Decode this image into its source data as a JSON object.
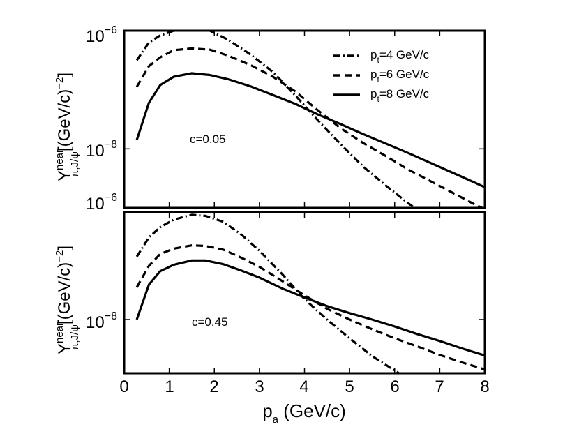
{
  "chart_data": [
    {
      "panel": "top",
      "type": "line",
      "y_scale": "log",
      "annotation": "c=0.05",
      "ylabel": {
        "main": "Y",
        "sup": "near",
        "sub": "π,J/ψ",
        "unit_pre": "[(GeV/c)",
        "unit_exp": "−2",
        "unit_post": "]"
      },
      "xlim": [
        0,
        8
      ],
      "ylim_log10": [
        -9,
        -6
      ],
      "yticks": [
        {
          "log10": -6,
          "base": "10",
          "exp": "−6"
        },
        {
          "log10": -8,
          "base": "10",
          "exp": "−8"
        }
      ],
      "series": [
        {
          "name": "p_t=4 GeV/c",
          "style": "dashdot",
          "x": [
            0.28,
            0.55,
            0.8,
            1.1,
            1.5,
            1.9,
            2.3,
            2.8,
            3.3,
            3.8,
            4.3,
            4.8,
            5.3,
            5.8,
            6.3,
            6.8,
            7.3,
            7.8,
            8.0
          ],
          "log10_y": [
            -6.5,
            -6.2,
            -6.08,
            -6.0,
            -5.95,
            -6.0,
            -6.15,
            -6.4,
            -6.7,
            -7.1,
            -7.52,
            -7.92,
            -8.3,
            -8.62,
            -8.92,
            -9.2,
            -9.5,
            -9.78,
            -9.9
          ]
        },
        {
          "name": "p_t=6 GeV/c",
          "style": "dashed",
          "x": [
            0.28,
            0.55,
            0.8,
            1.1,
            1.5,
            1.9,
            2.3,
            2.8,
            3.3,
            3.8,
            4.3,
            4.8,
            5.3,
            5.8,
            6.3,
            6.8,
            7.3,
            7.8,
            8.0
          ],
          "log10_y": [
            -6.95,
            -6.6,
            -6.45,
            -6.33,
            -6.3,
            -6.32,
            -6.42,
            -6.58,
            -6.78,
            -7.03,
            -7.35,
            -7.65,
            -7.9,
            -8.12,
            -8.35,
            -8.55,
            -8.75,
            -8.95,
            -9.02
          ]
        },
        {
          "name": "p_t=8 GeV/c",
          "style": "solid",
          "x": [
            0.28,
            0.55,
            0.8,
            1.1,
            1.5,
            1.9,
            2.3,
            2.8,
            3.3,
            3.8,
            4.3,
            4.8,
            5.3,
            5.8,
            6.3,
            6.8,
            7.3,
            7.8,
            8.0
          ],
          "log10_y": [
            -7.85,
            -7.22,
            -6.92,
            -6.78,
            -6.72,
            -6.75,
            -6.82,
            -6.94,
            -7.09,
            -7.24,
            -7.42,
            -7.58,
            -7.75,
            -7.91,
            -8.07,
            -8.24,
            -8.41,
            -8.58,
            -8.65
          ]
        }
      ]
    },
    {
      "panel": "bottom",
      "type": "line",
      "y_scale": "log",
      "annotation": "c=0.45",
      "ylabel": {
        "main": "Y",
        "sup": "near",
        "sub": "π,J/ψ",
        "unit_pre": "[(GeV/c)",
        "unit_exp": "−2",
        "unit_post": "]"
      },
      "xlim": [
        0,
        8
      ],
      "ylim_log10": [
        -9,
        -6
      ],
      "yticks": [
        {
          "log10": -6,
          "base": "10",
          "exp": "−6"
        },
        {
          "log10": -8,
          "base": "10",
          "exp": "−8"
        }
      ],
      "xticks": [
        "0",
        "1",
        "2",
        "3",
        "4",
        "5",
        "6",
        "7",
        "8"
      ],
      "xlabel": {
        "main": "p",
        "sub": "a",
        "rest": " (GeV/c)"
      },
      "series": [
        {
          "name": "p_t=4 GeV/c",
          "style": "dashdot",
          "x": [
            0.28,
            0.55,
            0.8,
            1.1,
            1.5,
            1.8,
            2.2,
            2.6,
            3.0,
            3.5,
            4.0,
            4.5,
            5.0,
            5.5,
            6.0,
            6.5,
            7.0,
            7.5,
            7.65
          ],
          "log10_y": [
            -6.83,
            -6.47,
            -6.28,
            -6.14,
            -6.05,
            -6.07,
            -6.18,
            -6.42,
            -6.72,
            -7.15,
            -7.62,
            -8.0,
            -8.35,
            -8.68,
            -8.95,
            -9.22,
            -9.48,
            -9.72,
            -9.8
          ]
        },
        {
          "name": "p_t=6 GeV/c",
          "style": "dashed",
          "x": [
            0.28,
            0.55,
            0.8,
            1.1,
            1.5,
            1.8,
            2.2,
            2.6,
            3.0,
            3.5,
            4.0,
            4.5,
            5.0,
            5.5,
            6.0,
            6.5,
            7.0,
            7.5,
            8.0
          ],
          "log10_y": [
            -7.4,
            -7.0,
            -6.78,
            -6.68,
            -6.62,
            -6.63,
            -6.7,
            -6.85,
            -7.02,
            -7.28,
            -7.55,
            -7.8,
            -8.0,
            -8.18,
            -8.35,
            -8.5,
            -8.66,
            -8.8,
            -8.93
          ]
        },
        {
          "name": "p_t=8 GeV/c",
          "style": "solid",
          "x": [
            0.28,
            0.55,
            0.8,
            1.1,
            1.5,
            1.8,
            2.2,
            2.6,
            3.0,
            3.5,
            4.0,
            4.5,
            5.0,
            5.5,
            6.0,
            6.5,
            7.0,
            7.5,
            8.0
          ],
          "log10_y": [
            -8.0,
            -7.35,
            -7.1,
            -6.98,
            -6.9,
            -6.9,
            -6.97,
            -7.09,
            -7.22,
            -7.42,
            -7.59,
            -7.75,
            -7.88,
            -8.0,
            -8.13,
            -8.27,
            -8.4,
            -8.54,
            -8.67
          ]
        }
      ]
    }
  ],
  "legend": [
    {
      "main": "p",
      "sub": "t",
      "rest": "=4 GeV/c",
      "style": "dashdot"
    },
    {
      "main": "p",
      "sub": "t",
      "rest": "=6 GeV/c",
      "style": "dashed"
    },
    {
      "main": "p",
      "sub": "t",
      "rest": "=8 GeV/c",
      "style": "solid"
    }
  ],
  "colors": {
    "line": "#000000",
    "background": "#ffffff"
  }
}
